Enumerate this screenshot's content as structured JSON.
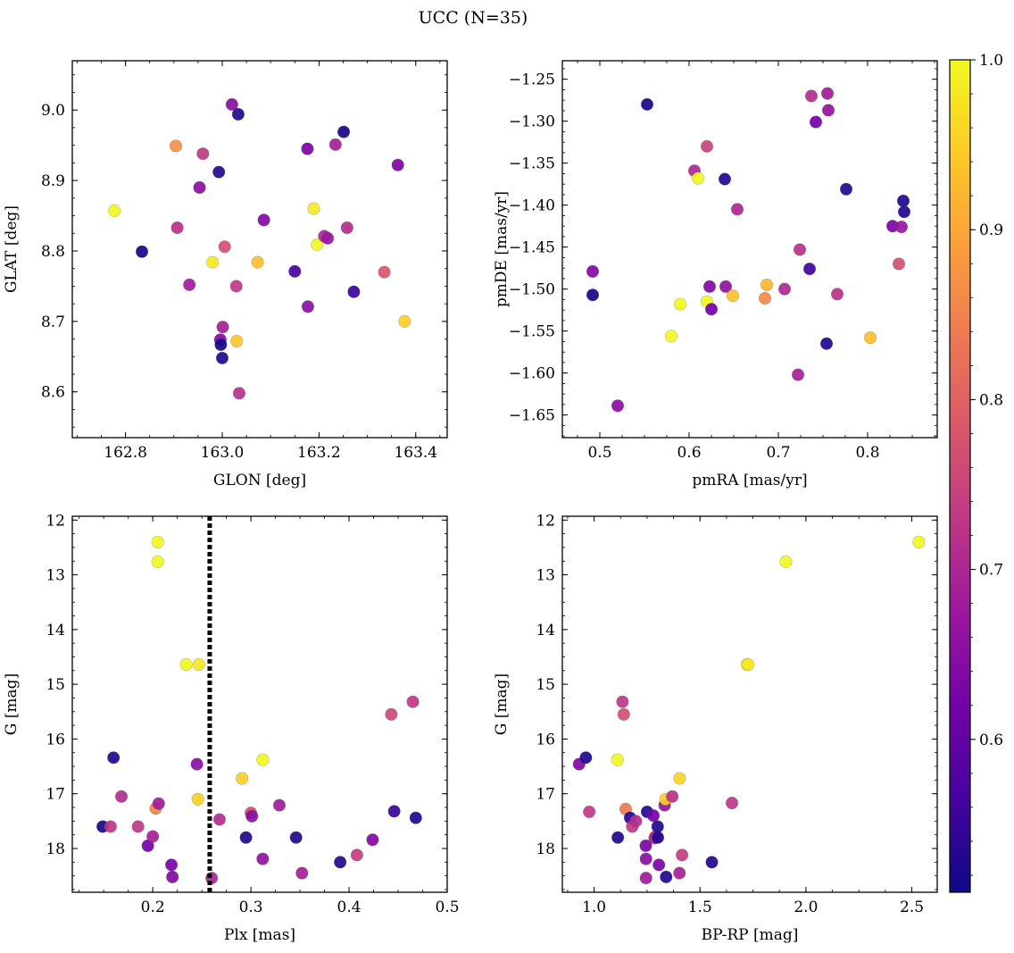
{
  "title": "UCC (N=35)",
  "colorbar": {
    "range": [
      0.51,
      1.0
    ],
    "ticks": [
      0.6,
      0.7,
      0.8,
      0.9,
      1.0
    ],
    "tick_labels": [
      "0.6",
      "0.7",
      "0.8",
      "0.9",
      "1.0"
    ],
    "colormap": "plasma",
    "colors": [
      "#0d0887",
      "#46039f",
      "#7201a8",
      "#9c179e",
      "#bd3786",
      "#d8576b",
      "#ed7953",
      "#fb9f3a",
      "#fdca26",
      "#f0f921"
    ]
  },
  "chart_data": [
    {
      "id": "sky",
      "type": "scatter",
      "xlabel": "GLON [deg]",
      "ylabel": "GLAT [deg]",
      "xlim": [
        162.69,
        163.465
      ],
      "ylim": [
        8.535,
        9.07
      ],
      "xticks": [
        162.8,
        163.0,
        163.2,
        163.4
      ],
      "xtick_labels": [
        "162.8",
        "163.0",
        "163.2",
        "163.4"
      ],
      "yticks": [
        8.6,
        8.7,
        8.8,
        8.9,
        9.0
      ],
      "ytick_labels": [
        "8.6",
        "8.7",
        "8.8",
        "8.9",
        "9.0"
      ],
      "points": [
        {
          "x": 162.777,
          "y": 8.857,
          "c": 1.0
        },
        {
          "x": 162.834,
          "y": 8.799,
          "c": 0.52
        },
        {
          "x": 162.904,
          "y": 8.949,
          "c": 0.87
        },
        {
          "x": 162.907,
          "y": 8.833,
          "c": 0.72
        },
        {
          "x": 162.932,
          "y": 8.752,
          "c": 0.68
        },
        {
          "x": 162.953,
          "y": 8.89,
          "c": 0.65
        },
        {
          "x": 162.96,
          "y": 8.938,
          "c": 0.73
        },
        {
          "x": 162.98,
          "y": 8.784,
          "c": 0.98
        },
        {
          "x": 162.993,
          "y": 8.912,
          "c": 0.53
        },
        {
          "x": 162.996,
          "y": 8.674,
          "c": 0.64
        },
        {
          "x": 162.997,
          "y": 8.667,
          "c": 0.52
        },
        {
          "x": 163.0,
          "y": 8.648,
          "c": 0.53
        },
        {
          "x": 163.001,
          "y": 8.692,
          "c": 0.69
        },
        {
          "x": 163.005,
          "y": 8.806,
          "c": 0.77
        },
        {
          "x": 163.02,
          "y": 9.008,
          "c": 0.65
        },
        {
          "x": 163.029,
          "y": 8.75,
          "c": 0.73
        },
        {
          "x": 163.03,
          "y": 8.672,
          "c": 0.94
        },
        {
          "x": 163.033,
          "y": 8.994,
          "c": 0.53
        },
        {
          "x": 163.035,
          "y": 8.598,
          "c": 0.72
        },
        {
          "x": 163.073,
          "y": 8.784,
          "c": 0.93
        },
        {
          "x": 163.086,
          "y": 8.844,
          "c": 0.64
        },
        {
          "x": 163.15,
          "y": 8.771,
          "c": 0.57
        },
        {
          "x": 163.176,
          "y": 8.945,
          "c": 0.63
        },
        {
          "x": 163.177,
          "y": 8.721,
          "c": 0.65
        },
        {
          "x": 163.189,
          "y": 8.86,
          "c": 0.98
        },
        {
          "x": 163.196,
          "y": 8.809,
          "c": 1.0
        },
        {
          "x": 163.211,
          "y": 8.821,
          "c": 0.7
        },
        {
          "x": 163.218,
          "y": 8.818,
          "c": 0.67
        },
        {
          "x": 163.234,
          "y": 8.951,
          "c": 0.69
        },
        {
          "x": 163.251,
          "y": 8.969,
          "c": 0.52
        },
        {
          "x": 163.258,
          "y": 8.833,
          "c": 0.71
        },
        {
          "x": 163.272,
          "y": 8.742,
          "c": 0.55
        },
        {
          "x": 163.335,
          "y": 8.77,
          "c": 0.78
        },
        {
          "x": 163.363,
          "y": 8.922,
          "c": 0.63
        },
        {
          "x": 163.377,
          "y": 8.7,
          "c": 0.95
        }
      ]
    },
    {
      "id": "pm",
      "type": "scatter",
      "xlabel": "pmRA [mas/yr]",
      "ylabel": "pmDE [mas/yr]",
      "xlim": [
        0.458,
        0.878
      ],
      "ylim": [
        -1.677,
        -1.228
      ],
      "xticks": [
        0.5,
        0.6,
        0.7,
        0.8
      ],
      "xtick_labels": [
        "0.5",
        "0.6",
        "0.7",
        "0.8"
      ],
      "yticks": [
        -1.25,
        -1.3,
        -1.35,
        -1.4,
        -1.45,
        -1.5,
        -1.55,
        -1.6,
        -1.65
      ],
      "ytick_labels": [
        "−1.25",
        "−1.30",
        "−1.35",
        "−1.40",
        "−1.45",
        "−1.50",
        "−1.55",
        "−1.60",
        "−1.65"
      ],
      "points": [
        {
          "x": 0.492,
          "y": -1.479,
          "c": 0.64
        },
        {
          "x": 0.492,
          "y": -1.507,
          "c": 0.52
        },
        {
          "x": 0.52,
          "y": -1.639,
          "c": 0.65
        },
        {
          "x": 0.553,
          "y": -1.28,
          "c": 0.52
        },
        {
          "x": 0.58,
          "y": -1.556,
          "c": 1.0
        },
        {
          "x": 0.59,
          "y": -1.518,
          "c": 1.0
        },
        {
          "x": 0.606,
          "y": -1.359,
          "c": 0.7
        },
        {
          "x": 0.61,
          "y": -1.368,
          "c": 1.0
        },
        {
          "x": 0.62,
          "y": -1.33,
          "c": 0.75
        },
        {
          "x": 0.62,
          "y": -1.515,
          "c": 1.0
        },
        {
          "x": 0.623,
          "y": -1.497,
          "c": 0.64
        },
        {
          "x": 0.625,
          "y": -1.524,
          "c": 0.62
        },
        {
          "x": 0.64,
          "y": -1.369,
          "c": 0.53
        },
        {
          "x": 0.641,
          "y": -1.497,
          "c": 0.66
        },
        {
          "x": 0.649,
          "y": -1.508,
          "c": 0.93
        },
        {
          "x": 0.654,
          "y": -1.405,
          "c": 0.7
        },
        {
          "x": 0.685,
          "y": -1.511,
          "c": 0.86
        },
        {
          "x": 0.687,
          "y": -1.495,
          "c": 0.92
        },
        {
          "x": 0.707,
          "y": -1.5,
          "c": 0.7
        },
        {
          "x": 0.722,
          "y": -1.602,
          "c": 0.69
        },
        {
          "x": 0.724,
          "y": -1.453,
          "c": 0.72
        },
        {
          "x": 0.735,
          "y": -1.476,
          "c": 0.56
        },
        {
          "x": 0.737,
          "y": -1.27,
          "c": 0.71
        },
        {
          "x": 0.742,
          "y": -1.301,
          "c": 0.62
        },
        {
          "x": 0.754,
          "y": -1.565,
          "c": 0.53
        },
        {
          "x": 0.755,
          "y": -1.267,
          "c": 0.68
        },
        {
          "x": 0.756,
          "y": -1.287,
          "c": 0.66
        },
        {
          "x": 0.766,
          "y": -1.506,
          "c": 0.72
        },
        {
          "x": 0.776,
          "y": -1.381,
          "c": 0.53
        },
        {
          "x": 0.803,
          "y": -1.558,
          "c": 0.93
        },
        {
          "x": 0.828,
          "y": -1.425,
          "c": 0.63
        },
        {
          "x": 0.835,
          "y": -1.47,
          "c": 0.77
        },
        {
          "x": 0.838,
          "y": -1.426,
          "c": 0.67
        },
        {
          "x": 0.84,
          "y": -1.395,
          "c": 0.53
        },
        {
          "x": 0.841,
          "y": -1.408,
          "c": 0.53
        }
      ]
    },
    {
      "id": "plx",
      "type": "scatter",
      "xlabel": "Plx [mas]",
      "ylabel": "G [mag]",
      "xlim": [
        0.118,
        0.5
      ],
      "ylim": [
        18.8,
        11.93
      ],
      "xticks": [
        0.2,
        0.3,
        0.4,
        0.5
      ],
      "xtick_labels": [
        "0.2",
        "0.3",
        "0.4",
        "0.5"
      ],
      "yticks": [
        12,
        13,
        14,
        15,
        16,
        17,
        18
      ],
      "ytick_labels": [
        "12",
        "13",
        "14",
        "15",
        "16",
        "17",
        "18"
      ],
      "vline": 0.258,
      "points": [
        {
          "x": 0.149,
          "y": 17.6,
          "c": 0.52
        },
        {
          "x": 0.157,
          "y": 17.6,
          "c": 0.73
        },
        {
          "x": 0.16,
          "y": 16.34,
          "c": 0.53
        },
        {
          "x": 0.168,
          "y": 17.05,
          "c": 0.71
        },
        {
          "x": 0.185,
          "y": 17.6,
          "c": 0.73
        },
        {
          "x": 0.195,
          "y": 17.95,
          "c": 0.62
        },
        {
          "x": 0.2,
          "y": 17.78,
          "c": 0.69
        },
        {
          "x": 0.203,
          "y": 17.27,
          "c": 0.85
        },
        {
          "x": 0.205,
          "y": 12.4,
          "c": 1.0
        },
        {
          "x": 0.205,
          "y": 12.76,
          "c": 1.0
        },
        {
          "x": 0.206,
          "y": 17.18,
          "c": 0.68
        },
        {
          "x": 0.219,
          "y": 18.3,
          "c": 0.63
        },
        {
          "x": 0.22,
          "y": 18.52,
          "c": 0.64
        },
        {
          "x": 0.234,
          "y": 14.64,
          "c": 1.0
        },
        {
          "x": 0.245,
          "y": 16.46,
          "c": 0.65
        },
        {
          "x": 0.246,
          "y": 17.1,
          "c": 0.95
        },
        {
          "x": 0.247,
          "y": 14.64,
          "c": 0.98
        },
        {
          "x": 0.26,
          "y": 18.54,
          "c": 0.7
        },
        {
          "x": 0.268,
          "y": 17.47,
          "c": 0.71
        },
        {
          "x": 0.291,
          "y": 16.72,
          "c": 0.95
        },
        {
          "x": 0.295,
          "y": 17.8,
          "c": 0.53
        },
        {
          "x": 0.3,
          "y": 17.35,
          "c": 0.77
        },
        {
          "x": 0.301,
          "y": 17.41,
          "c": 0.65
        },
        {
          "x": 0.312,
          "y": 16.38,
          "c": 1.0
        },
        {
          "x": 0.312,
          "y": 18.19,
          "c": 0.66
        },
        {
          "x": 0.329,
          "y": 17.21,
          "c": 0.68
        },
        {
          "x": 0.346,
          "y": 17.8,
          "c": 0.53
        },
        {
          "x": 0.352,
          "y": 18.45,
          "c": 0.69
        },
        {
          "x": 0.391,
          "y": 18.25,
          "c": 0.53
        },
        {
          "x": 0.408,
          "y": 18.12,
          "c": 0.74
        },
        {
          "x": 0.424,
          "y": 17.84,
          "c": 0.64
        },
        {
          "x": 0.443,
          "y": 15.55,
          "c": 0.76
        },
        {
          "x": 0.446,
          "y": 17.32,
          "c": 0.55
        },
        {
          "x": 0.465,
          "y": 15.32,
          "c": 0.73
        },
        {
          "x": 0.468,
          "y": 17.44,
          "c": 0.53
        }
      ]
    },
    {
      "id": "cmd",
      "type": "scatter",
      "xlabel": "BP-RP [mag]",
      "ylabel": "G [mag]",
      "xlim": [
        0.85,
        2.62
      ],
      "ylim": [
        18.8,
        11.93
      ],
      "xticks": [
        1.0,
        1.5,
        2.0,
        2.5
      ],
      "xtick_labels": [
        "1.0",
        "1.5",
        "2.0",
        "2.5"
      ],
      "yticks": [
        12,
        13,
        14,
        15,
        16,
        17,
        18
      ],
      "ytick_labels": [
        "12",
        "13",
        "14",
        "15",
        "16",
        "17",
        "18"
      ],
      "points": [
        {
          "x": 0.929,
          "y": 16.46,
          "c": 0.64
        },
        {
          "x": 0.961,
          "y": 16.34,
          "c": 0.53
        },
        {
          "x": 0.977,
          "y": 17.33,
          "c": 0.73
        },
        {
          "x": 1.11,
          "y": 16.38,
          "c": 1.0
        },
        {
          "x": 1.112,
          "y": 17.8,
          "c": 0.53
        },
        {
          "x": 1.134,
          "y": 15.32,
          "c": 0.73
        },
        {
          "x": 1.14,
          "y": 15.55,
          "c": 0.77
        },
        {
          "x": 1.149,
          "y": 17.28,
          "c": 0.84
        },
        {
          "x": 1.17,
          "y": 17.44,
          "c": 0.53
        },
        {
          "x": 1.18,
          "y": 17.6,
          "c": 0.73
        },
        {
          "x": 1.197,
          "y": 17.5,
          "c": 0.71
        },
        {
          "x": 1.244,
          "y": 17.95,
          "c": 0.63
        },
        {
          "x": 1.245,
          "y": 18.19,
          "c": 0.65
        },
        {
          "x": 1.245,
          "y": 18.54,
          "c": 0.68
        },
        {
          "x": 1.25,
          "y": 17.33,
          "c": 0.53
        },
        {
          "x": 1.28,
          "y": 17.4,
          "c": 0.62
        },
        {
          "x": 1.286,
          "y": 17.81,
          "c": 0.69
        },
        {
          "x": 1.29,
          "y": 17.78,
          "c": 0.71
        },
        {
          "x": 1.3,
          "y": 17.6,
          "c": 0.53
        },
        {
          "x": 1.301,
          "y": 17.8,
          "c": 0.53
        },
        {
          "x": 1.306,
          "y": 18.3,
          "c": 0.63
        },
        {
          "x": 1.333,
          "y": 17.21,
          "c": 0.66
        },
        {
          "x": 1.337,
          "y": 17.1,
          "c": 0.95
        },
        {
          "x": 1.34,
          "y": 18.52,
          "c": 0.53
        },
        {
          "x": 1.369,
          "y": 17.05,
          "c": 0.72
        },
        {
          "x": 1.403,
          "y": 18.45,
          "c": 0.69
        },
        {
          "x": 1.404,
          "y": 16.72,
          "c": 0.96
        },
        {
          "x": 1.415,
          "y": 18.12,
          "c": 0.74
        },
        {
          "x": 1.556,
          "y": 18.25,
          "c": 0.53
        },
        {
          "x": 1.651,
          "y": 17.17,
          "c": 0.73
        },
        {
          "x": 1.722,
          "y": 14.64,
          "c": 1.0
        },
        {
          "x": 1.727,
          "y": 14.64,
          "c": 0.98
        },
        {
          "x": 1.905,
          "y": 12.76,
          "c": 1.0
        },
        {
          "x": 2.533,
          "y": 12.4,
          "c": 1.0
        }
      ]
    }
  ]
}
